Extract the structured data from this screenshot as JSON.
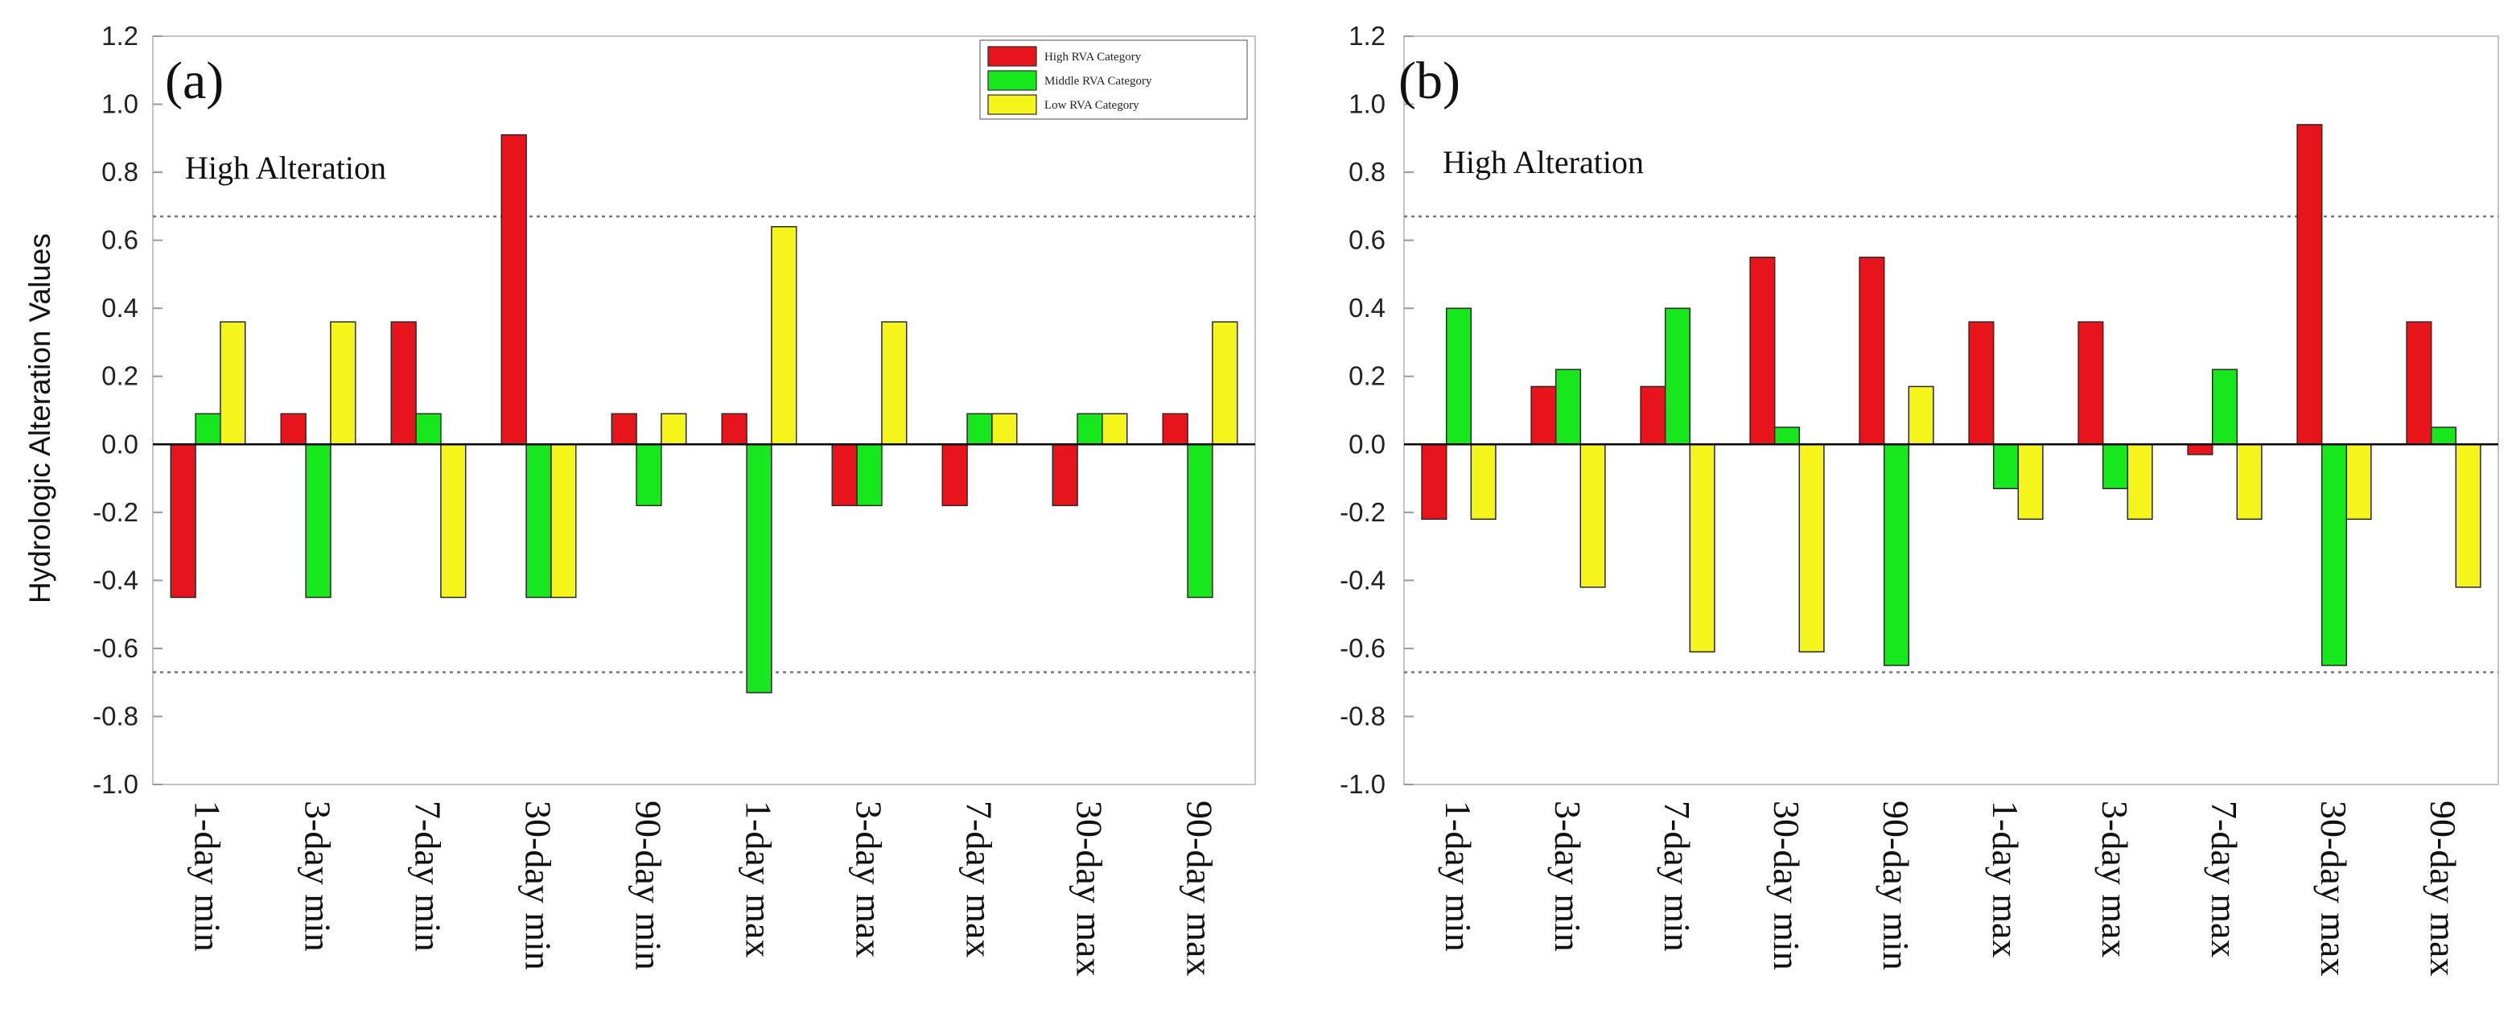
{
  "chart_data": [
    {
      "type": "bar",
      "panel_label": "(a)",
      "annotation": "High Alteration",
      "ylabel": "Hydrologic Alteration Values",
      "xlabel": "",
      "ylim": [
        -1.0,
        1.2
      ],
      "yticks": [
        "-1.0",
        "-0.8",
        "-0.6",
        "-0.4",
        "-0.2",
        "0.0",
        "0.2",
        "0.4",
        "0.6",
        "0.8",
        "1.0",
        "1.2"
      ],
      "threshold_lines": [
        0.67,
        -0.67
      ],
      "categories": [
        "1-day min",
        "3-day min",
        "7-day min",
        "30-day min",
        "90-day min",
        "1-day max",
        "3-day max",
        "7-day max",
        "30-day max",
        "90-day max"
      ],
      "series": [
        {
          "name": "High RVA Category",
          "color": "#e8141b",
          "values": [
            -0.45,
            0.09,
            0.36,
            0.91,
            0.09,
            0.09,
            -0.18,
            -0.18,
            -0.18,
            0.09
          ]
        },
        {
          "name": "Middle RVA Category",
          "color": "#17e81d",
          "values": [
            0.09,
            -0.45,
            0.09,
            -0.45,
            -0.18,
            -0.73,
            -0.18,
            0.09,
            0.09,
            -0.45
          ]
        },
        {
          "name": "Low RVA Category",
          "color": "#f5f51c",
          "values": [
            0.36,
            0.36,
            -0.45,
            -0.45,
            0.09,
            0.64,
            0.36,
            0.09,
            0.09,
            0.36
          ]
        }
      ],
      "legend": [
        "High RVA Category",
        "Middle RVA Category",
        "Low RVA Category"
      ]
    },
    {
      "type": "bar",
      "panel_label": "(b)",
      "annotation": "High Alteration",
      "ylabel": "",
      "xlabel": "",
      "ylim": [
        -1.0,
        1.2
      ],
      "yticks": [
        "-1.0",
        "-0.8",
        "-0.6",
        "-0.4",
        "-0.2",
        "0.0",
        "0.2",
        "0.4",
        "0.6",
        "0.8",
        "1.0",
        "1.2"
      ],
      "threshold_lines": [
        0.67,
        -0.67
      ],
      "categories": [
        "1-day min",
        "3-day min",
        "7-day min",
        "30-day min",
        "90-day min",
        "1-day max",
        "3-day max",
        "7-day max",
        "30-day max",
        "90-day max"
      ],
      "series": [
        {
          "name": "High RVA Category",
          "color": "#e8141b",
          "values": [
            -0.22,
            0.17,
            0.17,
            0.55,
            0.55,
            0.36,
            0.36,
            -0.03,
            0.94,
            0.36
          ]
        },
        {
          "name": "Middle RVA Category",
          "color": "#17e81d",
          "values": [
            0.4,
            0.22,
            0.4,
            0.05,
            -0.65,
            -0.13,
            -0.13,
            0.22,
            -0.65,
            0.05
          ]
        },
        {
          "name": "Low RVA Category",
          "color": "#f5f51c",
          "values": [
            -0.22,
            -0.42,
            -0.61,
            -0.61,
            0.17,
            -0.22,
            -0.22,
            -0.22,
            -0.22,
            -0.42
          ]
        }
      ],
      "legend": []
    }
  ]
}
